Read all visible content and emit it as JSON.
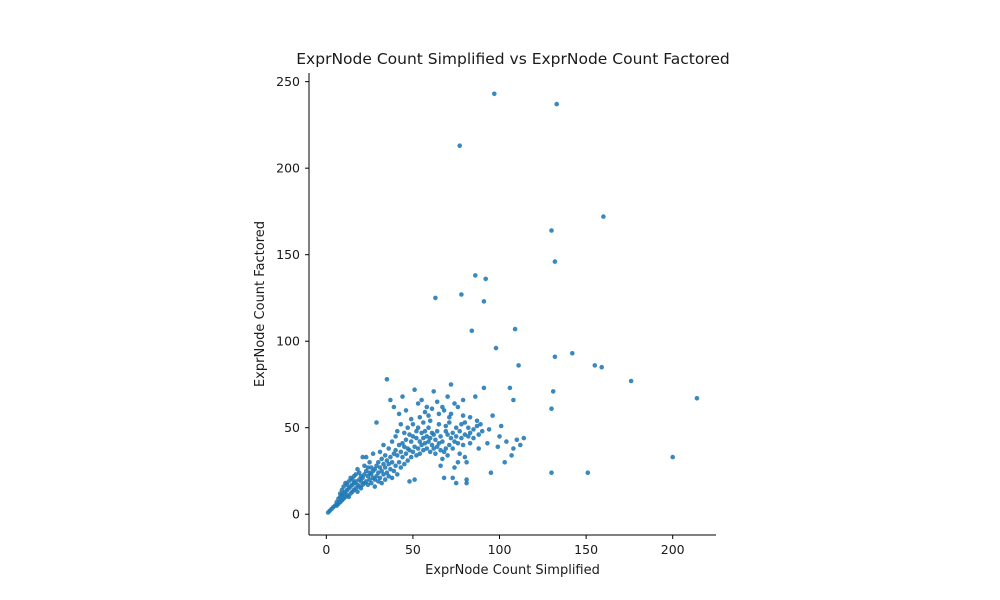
{
  "chart_data": {
    "type": "scatter",
    "title": "ExprNode Count Simplified vs ExprNode Count Factored",
    "xlabel": "ExprNode Count Simplified",
    "ylabel": "ExprNode Count Factored",
    "xlim": [
      -10,
      225
    ],
    "ylim": [
      -12,
      255
    ],
    "xticks": [
      0,
      50,
      100,
      150,
      200
    ],
    "yticks": [
      0,
      50,
      100,
      150,
      200,
      250
    ],
    "grid": false,
    "legend": false,
    "marker_color": "#1f77b4",
    "series": [
      {
        "points": [
          [
            1,
            1
          ],
          [
            2,
            2
          ],
          [
            3,
            3
          ],
          [
            4,
            4
          ],
          [
            5,
            5
          ],
          [
            6,
            5
          ],
          [
            6,
            7
          ],
          [
            7,
            6
          ],
          [
            7,
            9
          ],
          [
            8,
            7
          ],
          [
            8,
            10
          ],
          [
            8,
            12
          ],
          [
            9,
            8
          ],
          [
            9,
            11
          ],
          [
            9,
            14
          ],
          [
            10,
            9
          ],
          [
            10,
            12
          ],
          [
            10,
            16
          ],
          [
            11,
            10
          ],
          [
            11,
            13
          ],
          [
            11,
            18
          ],
          [
            12,
            11
          ],
          [
            12,
            14
          ],
          [
            12,
            17
          ],
          [
            13,
            10
          ],
          [
            13,
            15
          ],
          [
            13,
            19
          ],
          [
            14,
            12
          ],
          [
            14,
            16
          ],
          [
            14,
            21
          ],
          [
            15,
            13
          ],
          [
            15,
            17
          ],
          [
            15,
            20
          ],
          [
            16,
            14
          ],
          [
            16,
            18
          ],
          [
            16,
            22
          ],
          [
            17,
            15
          ],
          [
            17,
            19
          ],
          [
            17,
            23
          ],
          [
            18,
            13
          ],
          [
            18,
            17
          ],
          [
            18,
            26
          ],
          [
            19,
            16
          ],
          [
            19,
            20
          ],
          [
            19,
            24
          ],
          [
            20,
            15
          ],
          [
            20,
            19
          ],
          [
            20,
            22
          ],
          [
            21,
            17
          ],
          [
            21,
            21
          ],
          [
            21,
            33
          ],
          [
            22,
            18
          ],
          [
            22,
            23
          ],
          [
            22,
            28
          ],
          [
            23,
            19
          ],
          [
            23,
            25
          ],
          [
            23,
            33
          ],
          [
            24,
            17
          ],
          [
            24,
            22
          ],
          [
            24,
            27
          ],
          [
            25,
            20
          ],
          [
            25,
            24
          ],
          [
            25,
            30
          ],
          [
            26,
            18
          ],
          [
            26,
            23
          ],
          [
            26,
            27
          ],
          [
            27,
            21
          ],
          [
            27,
            25
          ],
          [
            27,
            35
          ],
          [
            28,
            16
          ],
          [
            28,
            20
          ],
          [
            28,
            26
          ],
          [
            29,
            22
          ],
          [
            29,
            28
          ],
          [
            29,
            53
          ],
          [
            30,
            19
          ],
          [
            30,
            24
          ],
          [
            30,
            30
          ],
          [
            31,
            21
          ],
          [
            31,
            27
          ],
          [
            31,
            36
          ],
          [
            32,
            18
          ],
          [
            32,
            25
          ],
          [
            32,
            32
          ],
          [
            33,
            23
          ],
          [
            33,
            29
          ],
          [
            33,
            40
          ],
          [
            34,
            20
          ],
          [
            34,
            27
          ],
          [
            34,
            34
          ],
          [
            35,
            24
          ],
          [
            35,
            31
          ],
          [
            35,
            78
          ],
          [
            36,
            22
          ],
          [
            36,
            29
          ],
          [
            36,
            38
          ],
          [
            37,
            26
          ],
          [
            37,
            33
          ],
          [
            37,
            66
          ],
          [
            38,
            21
          ],
          [
            38,
            30
          ],
          [
            38,
            42
          ],
          [
            39,
            25
          ],
          [
            39,
            35
          ],
          [
            39,
            62
          ],
          [
            40,
            28
          ],
          [
            40,
            37
          ],
          [
            40,
            45
          ],
          [
            41,
            23
          ],
          [
            41,
            34
          ],
          [
            41,
            48
          ],
          [
            42,
            30
          ],
          [
            42,
            40
          ],
          [
            42,
            58
          ],
          [
            43,
            27
          ],
          [
            43,
            36
          ],
          [
            43,
            52
          ],
          [
            44,
            33
          ],
          [
            44,
            41
          ],
          [
            44,
            68
          ],
          [
            45,
            29
          ],
          [
            45,
            39
          ],
          [
            45,
            47
          ],
          [
            46,
            35
          ],
          [
            46,
            43
          ],
          [
            46,
            60
          ],
          [
            47,
            31
          ],
          [
            47,
            38
          ],
          [
            47,
            50
          ],
          [
            48,
            19
          ],
          [
            48,
            37
          ],
          [
            48,
            46
          ],
          [
            49,
            33
          ],
          [
            49,
            42
          ],
          [
            49,
            55
          ],
          [
            50,
            36
          ],
          [
            50,
            45
          ],
          [
            50,
            52
          ],
          [
            51,
            20
          ],
          [
            51,
            39
          ],
          [
            51,
            72
          ],
          [
            52,
            34
          ],
          [
            52,
            44
          ],
          [
            52,
            48
          ],
          [
            53,
            38
          ],
          [
            53,
            50
          ],
          [
            53,
            64
          ],
          [
            54,
            35
          ],
          [
            54,
            42
          ],
          [
            54,
            56
          ],
          [
            55,
            40
          ],
          [
            55,
            47
          ],
          [
            55,
            66
          ],
          [
            56,
            37
          ],
          [
            56,
            44
          ],
          [
            56,
            53
          ],
          [
            57,
            41
          ],
          [
            57,
            48
          ],
          [
            57,
            59
          ],
          [
            58,
            38
          ],
          [
            58,
            45
          ],
          [
            58,
            62
          ],
          [
            59,
            42
          ],
          [
            59,
            50
          ],
          [
            59,
            57
          ],
          [
            60,
            36
          ],
          [
            60,
            44
          ],
          [
            60,
            54
          ],
          [
            61,
            40
          ],
          [
            61,
            47
          ],
          [
            61,
            61
          ],
          [
            62,
            38
          ],
          [
            62,
            46
          ],
          [
            62,
            71
          ],
          [
            63,
            35
          ],
          [
            63,
            43
          ],
          [
            63,
            125
          ],
          [
            64,
            39
          ],
          [
            64,
            48
          ],
          [
            64,
            65
          ],
          [
            65,
            41
          ],
          [
            65,
            52
          ],
          [
            65,
            58
          ],
          [
            66,
            28
          ],
          [
            66,
            37
          ],
          [
            66,
            45
          ],
          [
            67,
            32
          ],
          [
            67,
            42
          ],
          [
            67,
            62
          ],
          [
            68,
            21
          ],
          [
            68,
            36
          ],
          [
            68,
            60
          ],
          [
            69,
            38
          ],
          [
            69,
            51
          ],
          [
            69,
            48
          ],
          [
            70,
            34
          ],
          [
            70,
            46
          ],
          [
            70,
            68
          ],
          [
            71,
            40
          ],
          [
            71,
            53
          ],
          [
            71,
            56
          ],
          [
            72,
            44
          ],
          [
            72,
            58
          ],
          [
            72,
            75
          ],
          [
            73,
            21
          ],
          [
            73,
            38
          ],
          [
            73,
            47
          ],
          [
            74,
            27
          ],
          [
            74,
            42
          ],
          [
            74,
            64
          ],
          [
            75,
            18
          ],
          [
            75,
            45
          ],
          [
            75,
            50
          ],
          [
            76,
            30
          ],
          [
            76,
            41
          ],
          [
            76,
            62
          ],
          [
            77,
            213
          ],
          [
            77,
            35
          ],
          [
            77,
            48
          ],
          [
            78,
            44
          ],
          [
            78,
            52
          ],
          [
            78,
            127
          ],
          [
            79,
            40
          ],
          [
            79,
            57
          ],
          [
            79,
            66
          ],
          [
            80,
            33
          ],
          [
            80,
            46
          ],
          [
            80,
            53
          ],
          [
            81,
            30
          ],
          [
            81,
            20
          ],
          [
            81,
            18
          ],
          [
            82,
            45
          ],
          [
            82,
            50
          ],
          [
            83,
            41
          ],
          [
            83,
            47
          ],
          [
            83,
            56
          ],
          [
            84,
            106
          ],
          [
            85,
            49
          ],
          [
            85,
            44
          ],
          [
            86,
            138
          ],
          [
            86,
            68
          ],
          [
            87,
            51
          ],
          [
            87,
            54
          ],
          [
            88,
            38
          ],
          [
            88,
            46
          ],
          [
            89,
            52
          ],
          [
            90,
            48
          ],
          [
            91,
            123
          ],
          [
            91,
            73
          ],
          [
            92,
            136
          ],
          [
            93,
            41
          ],
          [
            94,
            49
          ],
          [
            95,
            24
          ],
          [
            96,
            57
          ],
          [
            97,
            243
          ],
          [
            98,
            96
          ],
          [
            99,
            39
          ],
          [
            100,
            45
          ],
          [
            101,
            51
          ],
          [
            103,
            30
          ],
          [
            104,
            42
          ],
          [
            106,
            73
          ],
          [
            107,
            34
          ],
          [
            108,
            38
          ],
          [
            108,
            66
          ],
          [
            109,
            107
          ],
          [
            110,
            43
          ],
          [
            111,
            86
          ],
          [
            112,
            40
          ],
          [
            114,
            44
          ],
          [
            130,
            24
          ],
          [
            130,
            61
          ],
          [
            130,
            164
          ],
          [
            131,
            71
          ],
          [
            132,
            91
          ],
          [
            132,
            146
          ],
          [
            133,
            237
          ],
          [
            142,
            93
          ],
          [
            151,
            24
          ],
          [
            155,
            86
          ],
          [
            159,
            85
          ],
          [
            160,
            172
          ],
          [
            176,
            77
          ],
          [
            200,
            33
          ],
          [
            214,
            67
          ]
        ]
      }
    ]
  }
}
